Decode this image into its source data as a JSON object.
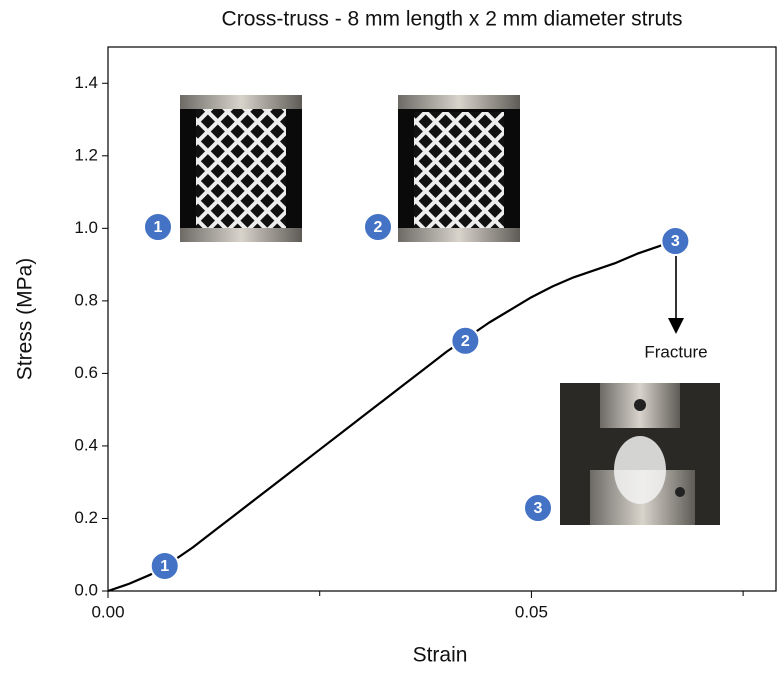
{
  "chart_data": {
    "type": "line",
    "title": "Cross-truss - 8 mm length x 2 mm diameter struts",
    "xlabel": "Strain",
    "ylabel": "Stress (MPa)",
    "x": [
      0,
      0.0025,
      0.005,
      0.0075,
      0.01,
      0.0125,
      0.015,
      0.0175,
      0.02,
      0.0225,
      0.025,
      0.0275,
      0.03,
      0.0325,
      0.035,
      0.0375,
      0.04,
      0.0425,
      0.045,
      0.0475,
      0.05,
      0.0525,
      0.055,
      0.0575,
      0.06,
      0.0625,
      0.065,
      0.067
    ],
    "values": [
      0,
      0.02,
      0.045,
      0.08,
      0.12,
      0.165,
      0.21,
      0.255,
      0.3,
      0.345,
      0.39,
      0.435,
      0.48,
      0.525,
      0.57,
      0.615,
      0.66,
      0.7,
      0.74,
      0.775,
      0.81,
      0.84,
      0.865,
      0.885,
      0.905,
      0.93,
      0.95,
      0.97
    ],
    "color": "#000000",
    "xlim": [
      0,
      0.079
    ],
    "ylim": [
      0,
      1.5
    ],
    "xticks": [
      {
        "value": 0,
        "label": "0.00"
      },
      {
        "value": 0.05,
        "label": "0.05"
      }
    ],
    "xminorticks": [
      0.025,
      0.075
    ],
    "yticks": [
      {
        "value": 0,
        "label": "0.0"
      },
      0.2,
      0.4,
      0.6,
      0.8,
      {
        "value": 1,
        "label": "1.0"
      },
      1.2,
      1.4
    ],
    "annotations": [
      {
        "label": "1",
        "x": 0.0067,
        "y": 0.069
      },
      {
        "label": "2",
        "x": 0.0422,
        "y": 0.69
      },
      {
        "label": "3",
        "x": 0.067,
        "y": 0.965
      }
    ],
    "image_labels": [
      "1",
      "2",
      "3"
    ],
    "fracture_label": "Fracture"
  }
}
